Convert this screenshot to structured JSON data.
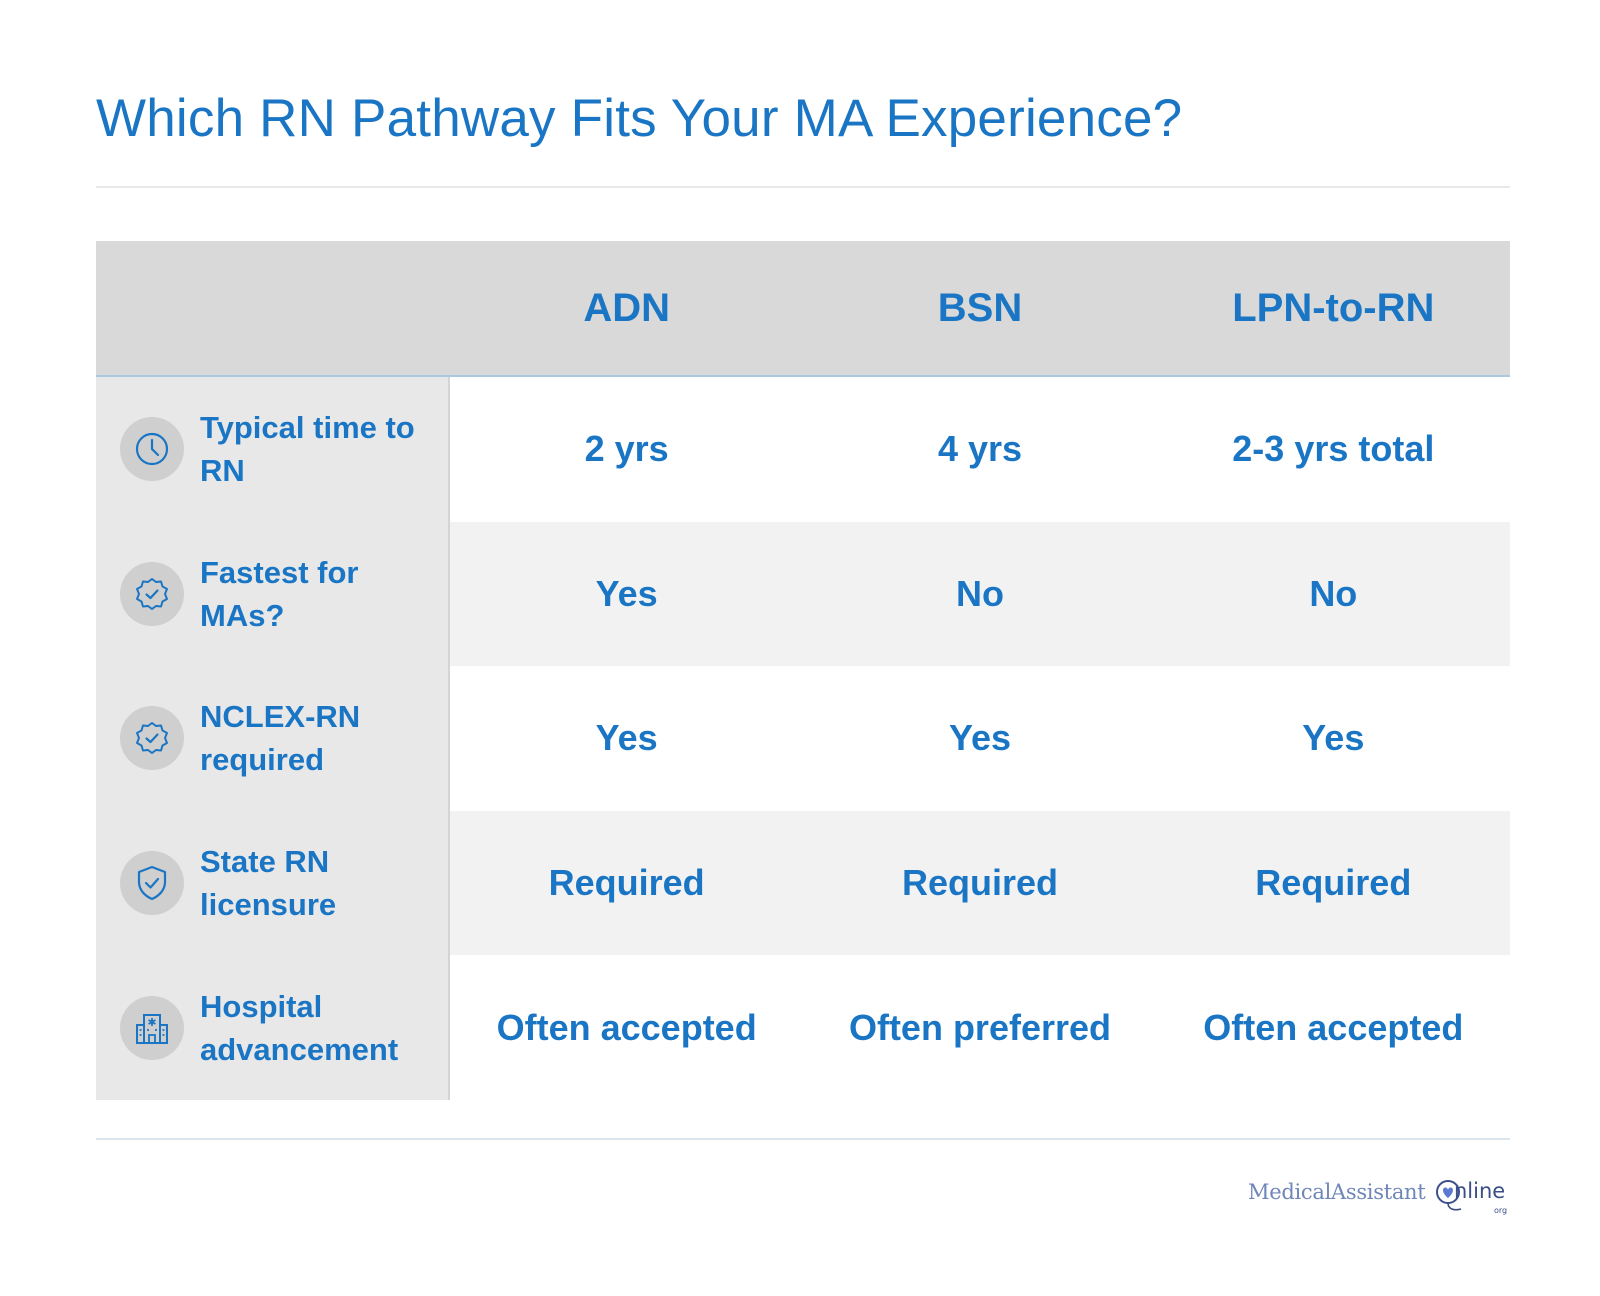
{
  "title": "Which RN Pathway Fits Your MA Experience?",
  "columns": [
    "ADN",
    "BSN",
    "LPN-to-RN"
  ],
  "rows": [
    {
      "icon": "clock-icon",
      "label": "Typical time to RN",
      "values": [
        "2 yrs",
        "4 yrs",
        "2-3 yrs total"
      ]
    },
    {
      "icon": "badge-check-icon",
      "label": "Fastest for MAs?",
      "values": [
        "Yes",
        "No",
        "No"
      ]
    },
    {
      "icon": "badge-check-icon",
      "label": "NCLEX-RN required",
      "values": [
        "Yes",
        "Yes",
        "Yes"
      ]
    },
    {
      "icon": "shield-check-icon",
      "label": "State RN licensure",
      "values": [
        "Required",
        "Required",
        "Required"
      ]
    },
    {
      "icon": "hospital-icon",
      "label": "Hospital advancement",
      "values": [
        "Often accepted",
        "Often preferred",
        "Often accepted"
      ]
    }
  ],
  "logo": {
    "brand": "MedicalAssistant",
    "online": "nline",
    "tld": "org"
  },
  "colors": {
    "accent": "#1a76c4",
    "header_bg": "#d9d9d9",
    "label_bg": "#e8e8e8",
    "alt_row_bg": "#f2f2f2",
    "logo": "#6f86b8"
  }
}
